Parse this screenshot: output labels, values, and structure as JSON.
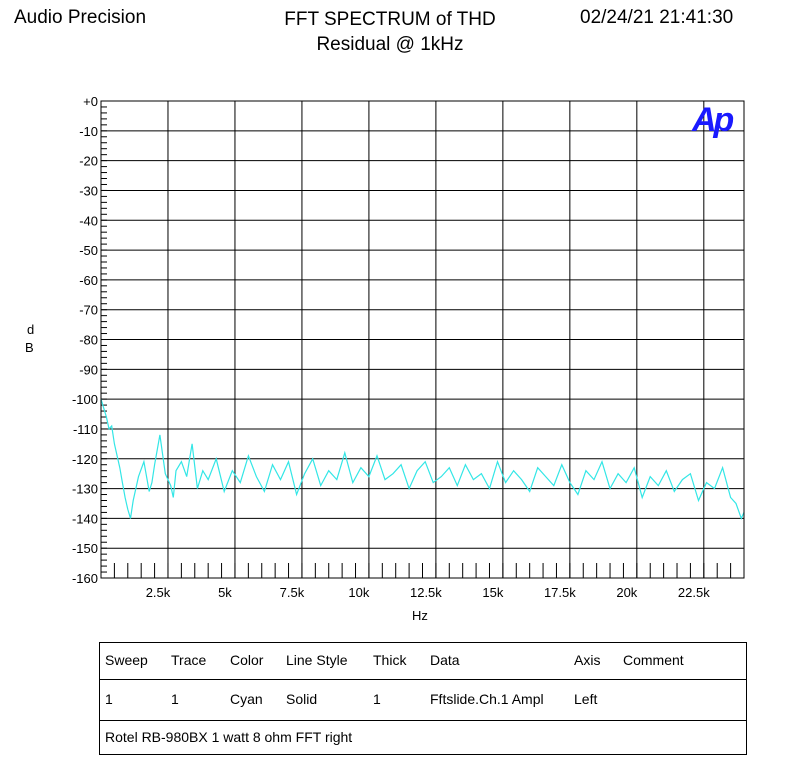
{
  "header": {
    "left": "Audio Precision",
    "title_line1": "FFT SPECTRUM of THD",
    "title_line2": "Residual @ 1kHz",
    "date": "02/24/21 21:41:30"
  },
  "logo": "Ap",
  "chart_data": {
    "type": "line",
    "title": "FFT SPECTRUM of THD Residual @ 1kHz",
    "xlabel": "Hz",
    "ylabel": "dB",
    "xlim": [
      0,
      24000
    ],
    "ylim": [
      -160,
      0
    ],
    "grid": true,
    "xticks": [
      2500,
      5000,
      7500,
      10000,
      12500,
      15000,
      17500,
      20000,
      22500
    ],
    "xtick_labels": [
      "2.5k",
      "5k",
      "7.5k",
      "10k",
      "12.5k",
      "15k",
      "17.5k",
      "20k",
      "22.5k"
    ],
    "yticks": [
      0,
      -10,
      -20,
      -30,
      -40,
      -50,
      -60,
      -70,
      -80,
      -90,
      -100,
      -110,
      -120,
      -130,
      -140,
      -150,
      -160
    ],
    "ytick_labels": [
      "+0",
      "-10",
      "-20",
      "-30",
      "-40",
      "-50",
      "-60",
      "-70",
      "-80",
      "-90",
      "-100",
      "-110",
      "-120",
      "-130",
      "-140",
      "-150",
      "-160"
    ],
    "series": [
      {
        "color": "#33e6e6",
        "x": [
          0,
          100,
          200,
          300,
          400,
          500,
          600,
          700,
          800,
          900,
          1000,
          1100,
          1200,
          1400,
          1600,
          1800,
          1900,
          2000,
          2200,
          2400,
          2600,
          2700,
          2800,
          3000,
          3200,
          3400,
          3600,
          3800,
          4000,
          4300,
          4600,
          4900,
          5200,
          5500,
          5800,
          6100,
          6400,
          6700,
          7000,
          7300,
          7600,
          7900,
          8200,
          8500,
          8800,
          9100,
          9400,
          9700,
          10000,
          10300,
          10600,
          10900,
          11200,
          11500,
          11800,
          12100,
          12400,
          12700,
          13000,
          13300,
          13600,
          13900,
          14200,
          14500,
          14800,
          15100,
          15400,
          15700,
          16000,
          16300,
          16600,
          16900,
          17200,
          17500,
          17800,
          18100,
          18400,
          18700,
          19000,
          19300,
          19600,
          19900,
          20200,
          20500,
          20800,
          21100,
          21400,
          21700,
          22000,
          22300,
          22600,
          22900,
          23200,
          23500,
          23700,
          23900,
          24000
        ],
        "y": [
          -100,
          -103,
          -106,
          -110,
          -109,
          -115,
          -119,
          -123,
          -128,
          -133,
          -137,
          -140,
          -134,
          -126,
          -121,
          -131,
          -128,
          -122,
          -112,
          -125,
          -129,
          -133,
          -124,
          -121,
          -126,
          -115,
          -130,
          -124,
          -127,
          -120,
          -131,
          -124,
          -128,
          -119,
          -126,
          -131,
          -122,
          -127,
          -121,
          -132,
          -125,
          -120,
          -129,
          -124,
          -127,
          -118,
          -128,
          -123,
          -126,
          -119,
          -127,
          -125,
          -122,
          -130,
          -124,
          -121,
          -128,
          -126,
          -123,
          -129,
          -122,
          -127,
          -125,
          -130,
          -121,
          -128,
          -124,
          -127,
          -131,
          -123,
          -126,
          -129,
          -122,
          -128,
          -132,
          -124,
          -127,
          -121,
          -130,
          -125,
          -128,
          -123,
          -133,
          -126,
          -129,
          -124,
          -131,
          -127,
          -125,
          -134,
          -128,
          -130,
          -123,
          -133,
          -135,
          -140,
          -138
        ]
      }
    ]
  },
  "legend": {
    "headers": [
      "Sweep",
      "Trace",
      "Color",
      "Line Style",
      "Thick",
      "Data",
      "Axis",
      "Comment"
    ],
    "row": [
      "1",
      "1",
      "Cyan",
      "Solid",
      "1",
      "Fftslide.Ch.1 Ampl",
      "Left",
      ""
    ],
    "comment": "Rotel RB-980BX 1 watt 8 ohm FFT right"
  }
}
